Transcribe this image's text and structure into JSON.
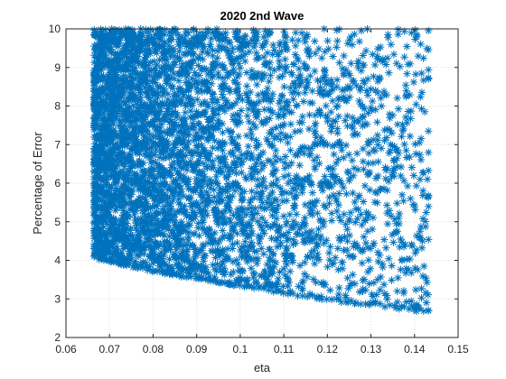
{
  "chart_data": {
    "type": "scatter",
    "title": "2020 2nd Wave",
    "xlabel": "eta",
    "ylabel": "Percentage of Error",
    "xlim": [
      0.06,
      0.15
    ],
    "ylim": [
      2,
      10
    ],
    "xticks": [
      0.06,
      0.07,
      0.08,
      0.09,
      0.1,
      0.11,
      0.12,
      0.13,
      0.14,
      0.15
    ],
    "xtick_labels": [
      "0.06",
      "0.07",
      "0.08",
      "0.09",
      "0.1",
      "0.11",
      "0.12",
      "0.13",
      "0.14",
      "0.15"
    ],
    "yticks": [
      2,
      3,
      4,
      5,
      6,
      7,
      8,
      9,
      10
    ],
    "ytick_labels": [
      "2",
      "3",
      "4",
      "5",
      "6",
      "7",
      "8",
      "9",
      "10"
    ],
    "grid": true,
    "marker": "asterisk",
    "color": "#0072BD",
    "series": [
      {
        "x_min": 0.0665,
        "x_max": 0.1432,
        "lower_boundary": [
          [
            0.0665,
            4.05
          ],
          [
            0.08,
            3.7
          ],
          [
            0.1,
            3.3
          ],
          [
            0.12,
            2.95
          ],
          [
            0.1432,
            2.65
          ]
        ],
        "y_max": 10.0
      }
    ]
  }
}
